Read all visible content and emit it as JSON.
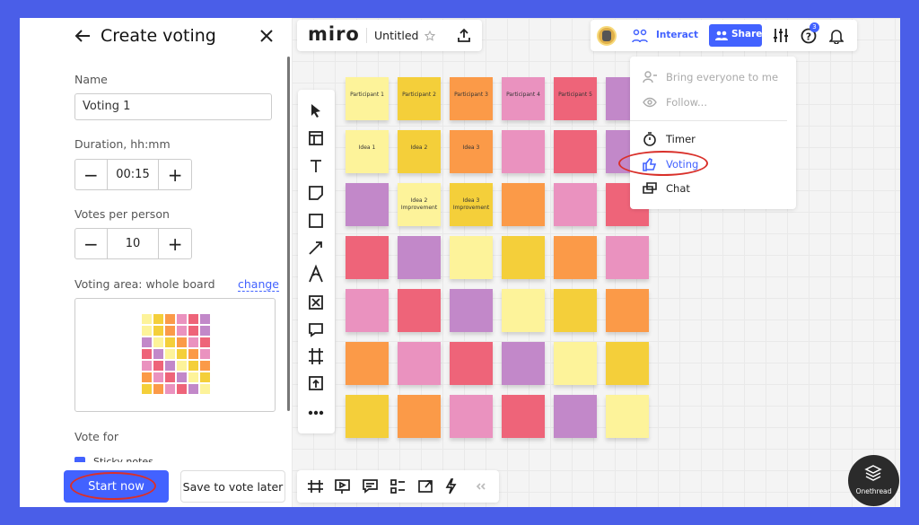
{
  "panel": {
    "title": "Create voting",
    "name_label": "Name",
    "name_value": "Voting 1",
    "duration_label": "Duration, hh:mm",
    "duration_value": "00:15",
    "votes_label": "Votes per person",
    "votes_value": "10",
    "area_label": "Voting area: whole board",
    "area_change": "change",
    "vote_for_label": "Vote for",
    "vote_for_option": "Sticky notes",
    "start_button": "Start now",
    "save_button": "Save to vote later"
  },
  "topbar": {
    "logo": "miro",
    "board_name": "Untitled",
    "interact": "Interact",
    "share": "Share",
    "help_badge": "3"
  },
  "menu": {
    "items": [
      "Bring everyone to me",
      "Follow...",
      "Timer",
      "Voting",
      "Chat"
    ]
  },
  "board": {
    "notes": [
      "Participant 1",
      "Participant 2",
      "Participant 3",
      "Participant 4",
      "Participant 5",
      "Idea 1",
      "Idea 2",
      "Idea 3",
      "Idea 2 Improvement",
      "Idea 3 Improvement"
    ]
  },
  "watermark": "Onethread"
}
